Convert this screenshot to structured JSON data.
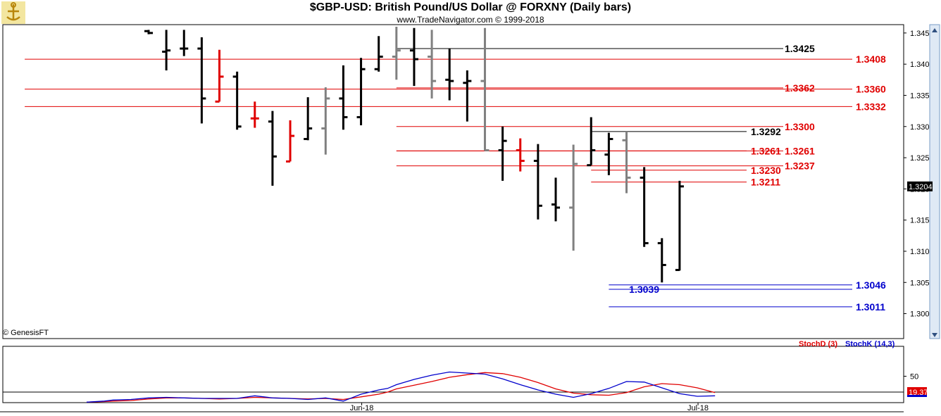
{
  "header": {
    "title": "$GBP-USD:  British Pound/US Dollar @ FORXNY  (Daily bars)",
    "copyright": "www.TradeNavigator.com © 1999-2018"
  },
  "footer": {
    "genesis": "© GenesisFT"
  },
  "colors": {
    "red": "#e00000",
    "blue": "#0000cc",
    "black": "#000000",
    "gray": "#808080"
  },
  "chart_data": [
    {
      "type": "ohlc",
      "title": "$GBP-USD:  British Pound/US Dollar @ FORXNY  (Daily bars)",
      "ylim": [
        1.296,
        1.346
      ],
      "y_ticks": [
        "1.3450",
        "1.3400",
        "1.3350",
        "1.3300",
        "1.3250",
        "1.3200",
        "1.3150",
        "1.3100",
        "1.3050",
        "1.3000"
      ],
      "last_price": "1.3204",
      "bars": [
        {
          "o": 1.3453,
          "h": 1.3455,
          "l": 1.3448,
          "c": 1.345,
          "color": "black"
        },
        {
          "o": 1.342,
          "h": 1.3455,
          "l": 1.339,
          "c": 1.3422,
          "color": "black"
        },
        {
          "o": 1.3425,
          "h": 1.3455,
          "l": 1.3413,
          "c": 1.3425,
          "color": "black"
        },
        {
          "o": 1.3425,
          "h": 1.3443,
          "l": 1.3305,
          "c": 1.3345,
          "color": "black"
        },
        {
          "o": 1.334,
          "h": 1.3423,
          "l": 1.334,
          "c": 1.338,
          "color": "red"
        },
        {
          "o": 1.338,
          "h": 1.3388,
          "l": 1.3295,
          "c": 1.33,
          "color": "black"
        },
        {
          "o": 1.3313,
          "h": 1.334,
          "l": 1.3298,
          "c": 1.3313,
          "color": "red"
        },
        {
          "o": 1.3308,
          "h": 1.3325,
          "l": 1.3205,
          "c": 1.3252,
          "color": "black"
        },
        {
          "o": 1.3244,
          "h": 1.331,
          "l": 1.3244,
          "c": 1.3285,
          "color": "red"
        },
        {
          "o": 1.328,
          "h": 1.3347,
          "l": 1.3278,
          "c": 1.3297,
          "color": "black"
        },
        {
          "o": 1.3297,
          "h": 1.3363,
          "l": 1.3255,
          "c": 1.3345,
          "color": "gray"
        },
        {
          "o": 1.3345,
          "h": 1.3398,
          "l": 1.3295,
          "c": 1.3315,
          "color": "black"
        },
        {
          "o": 1.3315,
          "h": 1.341,
          "l": 1.3302,
          "c": 1.3392,
          "color": "black"
        },
        {
          "o": 1.3392,
          "h": 1.3445,
          "l": 1.3388,
          "c": 1.3412,
          "color": "black"
        },
        {
          "o": 1.3412,
          "h": 1.346,
          "l": 1.3375,
          "c": 1.3422,
          "color": "gray"
        },
        {
          "o": 1.3422,
          "h": 1.3458,
          "l": 1.3365,
          "c": 1.3408,
          "color": "black"
        },
        {
          "o": 1.3412,
          "h": 1.3455,
          "l": 1.3345,
          "c": 1.3373,
          "color": "gray"
        },
        {
          "o": 1.3375,
          "h": 1.3425,
          "l": 1.3342,
          "c": 1.3373,
          "color": "black"
        },
        {
          "o": 1.337,
          "h": 1.339,
          "l": 1.3308,
          "c": 1.3373,
          "color": "black"
        },
        {
          "o": 1.3373,
          "h": 1.3458,
          "l": 1.3261,
          "c": 1.3262,
          "color": "gray"
        },
        {
          "o": 1.3262,
          "h": 1.33,
          "l": 1.3213,
          "c": 1.3277,
          "color": "black"
        },
        {
          "o": 1.3262,
          "h": 1.3281,
          "l": 1.3228,
          "c": 1.3245,
          "color": "red"
        },
        {
          "o": 1.3245,
          "h": 1.3272,
          "l": 1.3151,
          "c": 1.3173,
          "color": "black"
        },
        {
          "o": 1.3175,
          "h": 1.3218,
          "l": 1.3148,
          "c": 1.317,
          "color": "black"
        },
        {
          "o": 1.317,
          "h": 1.3271,
          "l": 1.3101,
          "c": 1.324,
          "color": "gray"
        },
        {
          "o": 1.3238,
          "h": 1.3315,
          "l": 1.3238,
          "c": 1.3262,
          "color": "black"
        },
        {
          "o": 1.3255,
          "h": 1.329,
          "l": 1.3222,
          "c": 1.328,
          "color": "black"
        },
        {
          "o": 1.3278,
          "h": 1.3292,
          "l": 1.3193,
          "c": 1.3218,
          "color": "gray"
        },
        {
          "o": 1.3218,
          "h": 1.3235,
          "l": 1.3107,
          "c": 1.3113,
          "color": "black"
        },
        {
          "o": 1.3113,
          "h": 1.3121,
          "l": 1.305,
          "c": 1.3078,
          "color": "black"
        },
        {
          "o": 1.307,
          "h": 1.3213,
          "l": 1.3069,
          "c": 1.3204,
          "color": "black"
        }
      ],
      "levels": [
        {
          "price": 1.3425,
          "label": "1.3425",
          "color": "black",
          "start_bar": 14,
          "label_side": "left"
        },
        {
          "price": 1.3408,
          "label": "1.3408",
          "color": "red",
          "start_bar": -7,
          "label_side": "right"
        },
        {
          "price": 1.3362,
          "label": "1.3362",
          "color": "red",
          "start_bar": 14,
          "label_side": "left"
        },
        {
          "price": 1.336,
          "label": "1.3360",
          "color": "red",
          "start_bar": -7,
          "label_side": "right"
        },
        {
          "price": 1.3332,
          "label": "1.3332",
          "color": "red",
          "start_bar": -7,
          "label_side": "right"
        },
        {
          "price": 1.33,
          "label": "1.3300",
          "color": "red",
          "start_bar": 14,
          "label_side": "right"
        },
        {
          "price": 1.3292,
          "label": "1.3292",
          "color": "black",
          "start_bar": 25,
          "label_side": "left"
        },
        {
          "price": 1.3261,
          "label": "1.3261",
          "color": "red",
          "start_bar": 14,
          "label_side": "left"
        },
        {
          "price": 1.3261,
          "label": "1.3261",
          "color": "red",
          "start_bar": 14,
          "label_side": "right"
        },
        {
          "price": 1.3237,
          "label": "1.3237",
          "color": "red",
          "start_bar": 14,
          "label_side": "right"
        },
        {
          "price": 1.323,
          "label": "1.3230",
          "color": "red",
          "start_bar": 25,
          "label_side": "left"
        },
        {
          "price": 1.3211,
          "label": "1.3211",
          "color": "red",
          "start_bar": 25,
          "label_side": "left"
        },
        {
          "price": 1.3046,
          "label": "1.3046",
          "color": "blue",
          "start_bar": 26,
          "label_side": "right"
        },
        {
          "price": 1.3039,
          "label": "1.3039",
          "color": "blue",
          "start_bar": 26,
          "label_side": "before"
        },
        {
          "price": 1.3011,
          "label": "1.3011",
          "color": "blue",
          "start_bar": 26,
          "label_side": "right"
        }
      ]
    },
    {
      "type": "line",
      "title": "",
      "ylim": [
        0,
        100
      ],
      "y_ticks": [
        "50"
      ],
      "reference_line": 20,
      "last_value": "19.37",
      "x_labels": [
        {
          "bar": 12,
          "label": "Jun-18"
        },
        {
          "bar": 31,
          "label": "Jul-18"
        }
      ],
      "series": [
        {
          "name": "StochD (3)",
          "color": "red",
          "points": [
            [
              -7,
              1
            ],
            [
              -5,
              2
            ],
            [
              -4,
              3
            ],
            [
              -2,
              4
            ],
            [
              0,
              7
            ],
            [
              2,
              9
            ],
            [
              4,
              9
            ],
            [
              6,
              8
            ],
            [
              8,
              7
            ],
            [
              10,
              8
            ],
            [
              12,
              10
            ],
            [
              14,
              9
            ],
            [
              16,
              8
            ],
            [
              18,
              7
            ],
            [
              20,
              8
            ],
            [
              22,
              6
            ],
            [
              24,
              11
            ],
            [
              26,
              16
            ],
            [
              27,
              20
            ],
            [
              28,
              26
            ],
            [
              30,
              33
            ],
            [
              32,
              40
            ],
            [
              34,
              48
            ],
            [
              36,
              53
            ],
            [
              38,
              57
            ],
            [
              40,
              55
            ],
            [
              42,
              48
            ],
            [
              44,
              38
            ],
            [
              46,
              26
            ],
            [
              48,
              18
            ],
            [
              50,
              15
            ],
            [
              52,
              14
            ],
            [
              54,
              19
            ],
            [
              56,
              30
            ],
            [
              58,
              36
            ],
            [
              60,
              34
            ],
            [
              62,
              28
            ],
            [
              64,
              19
            ]
          ]
        },
        {
          "name": "StochK (14,3)",
          "color": "blue",
          "points": [
            [
              -7,
              1
            ],
            [
              -5,
              3
            ],
            [
              -4,
              5
            ],
            [
              -2,
              6
            ],
            [
              0,
              9
            ],
            [
              2,
              10
            ],
            [
              4,
              9
            ],
            [
              6,
              8
            ],
            [
              8,
              8
            ],
            [
              10,
              8
            ],
            [
              12,
              13
            ],
            [
              14,
              9
            ],
            [
              16,
              8
            ],
            [
              18,
              6
            ],
            [
              20,
              9
            ],
            [
              22,
              3
            ],
            [
              24,
              16
            ],
            [
              26,
              24
            ],
            [
              27,
              27
            ],
            [
              28,
              34
            ],
            [
              30,
              44
            ],
            [
              32,
              52
            ],
            [
              34,
              58
            ],
            [
              36,
              56
            ],
            [
              38,
              54
            ],
            [
              40,
              45
            ],
            [
              42,
              34
            ],
            [
              44,
              24
            ],
            [
              46,
              16
            ],
            [
              48,
              10
            ],
            [
              50,
              17
            ],
            [
              52,
              27
            ],
            [
              54,
              40
            ],
            [
              56,
              39
            ],
            [
              58,
              28
            ],
            [
              60,
              17
            ],
            [
              62,
              12
            ],
            [
              64,
              13
            ]
          ]
        }
      ]
    }
  ]
}
